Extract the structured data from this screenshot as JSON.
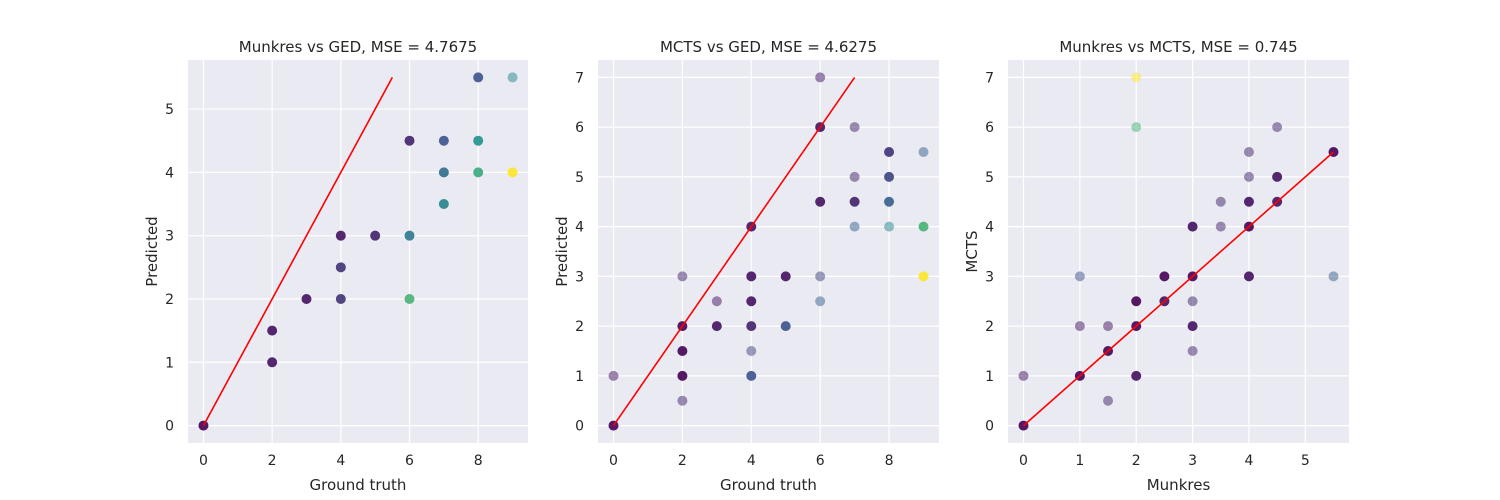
{
  "chart_data": [
    {
      "type": "scatter",
      "title": "Munkres vs GED, MSE = 4.7675",
      "xlabel": "Ground truth",
      "ylabel": "Predicted",
      "xlim": [
        -0.45,
        9.45
      ],
      "ylim": [
        -0.275,
        5.775
      ],
      "xticks": [
        0,
        2,
        4,
        6,
        8
      ],
      "yticks": [
        0,
        1,
        2,
        3,
        4,
        5
      ],
      "grid": true,
      "identity_line": [
        [
          0,
          0
        ],
        [
          5.5,
          5.5
        ]
      ],
      "points": [
        {
          "x": 0,
          "y": 0,
          "c": 0.0,
          "dense": true
        },
        {
          "x": 2,
          "y": 1,
          "c": 0.05,
          "dense": true
        },
        {
          "x": 2,
          "y": 1.5,
          "c": 0.05,
          "dense": true
        },
        {
          "x": 3,
          "y": 2,
          "c": 0.05,
          "dense": true
        },
        {
          "x": 4,
          "y": 2,
          "c": 0.15,
          "dense": true
        },
        {
          "x": 4,
          "y": 2.5,
          "c": 0.15,
          "dense": true
        },
        {
          "x": 4,
          "y": 3,
          "c": 0.05,
          "dense": true
        },
        {
          "x": 5,
          "y": 3,
          "c": 0.1,
          "dense": true
        },
        {
          "x": 6,
          "y": 2,
          "c": 0.65,
          "dense": true
        },
        {
          "x": 6,
          "y": 3,
          "c": 0.4,
          "dense": true
        },
        {
          "x": 6,
          "y": 4.5,
          "c": 0.1,
          "dense": true
        },
        {
          "x": 7,
          "y": 3.5,
          "c": 0.45,
          "dense": true
        },
        {
          "x": 7,
          "y": 4,
          "c": 0.35,
          "dense": true
        },
        {
          "x": 7,
          "y": 4.5,
          "c": 0.25,
          "dense": true
        },
        {
          "x": 8,
          "y": 4,
          "c": 0.6,
          "dense": true
        },
        {
          "x": 8,
          "y": 4.5,
          "c": 0.5,
          "dense": true
        },
        {
          "x": 8,
          "y": 5.5,
          "c": 0.25,
          "dense": true
        },
        {
          "x": 9,
          "y": 4,
          "c": 1.0,
          "dense": true
        },
        {
          "x": 9,
          "y": 5.5,
          "c": 0.45,
          "dense": false
        }
      ]
    },
    {
      "type": "scatter",
      "title": "MCTS vs GED, MSE = 4.6275",
      "xlabel": "Ground truth",
      "ylabel": "Predicted",
      "xlim": [
        -0.45,
        9.45
      ],
      "ylim": [
        -0.35,
        7.35
      ],
      "xticks": [
        0,
        2,
        4,
        6,
        8
      ],
      "yticks": [
        0,
        1,
        2,
        3,
        4,
        5,
        6,
        7
      ],
      "grid": true,
      "identity_line": [
        [
          0,
          0
        ],
        [
          7,
          7
        ]
      ],
      "points": [
        {
          "x": 0,
          "y": 0,
          "c": 0.0,
          "dense": true
        },
        {
          "x": 0,
          "y": 1,
          "c": 0.05,
          "dense": false
        },
        {
          "x": 2,
          "y": 0.5,
          "c": 0.1,
          "dense": false
        },
        {
          "x": 2,
          "y": 1,
          "c": 0.0,
          "dense": true
        },
        {
          "x": 2,
          "y": 1.5,
          "c": 0.0,
          "dense": true
        },
        {
          "x": 2,
          "y": 2,
          "c": 0.0,
          "dense": true
        },
        {
          "x": 2,
          "y": 3,
          "c": 0.1,
          "dense": false
        },
        {
          "x": 3,
          "y": 2,
          "c": 0.05,
          "dense": true
        },
        {
          "x": 3,
          "y": 2.5,
          "c": 0.05,
          "dense": false
        },
        {
          "x": 4,
          "y": 1,
          "c": 0.25,
          "dense": true
        },
        {
          "x": 4,
          "y": 1.5,
          "c": 0.2,
          "dense": false
        },
        {
          "x": 4,
          "y": 2,
          "c": 0.1,
          "dense": true
        },
        {
          "x": 4,
          "y": 2.5,
          "c": 0.05,
          "dense": true
        },
        {
          "x": 4,
          "y": 3,
          "c": 0.05,
          "dense": true
        },
        {
          "x": 4,
          "y": 4,
          "c": 0.05,
          "dense": true
        },
        {
          "x": 5,
          "y": 2,
          "c": 0.25,
          "dense": true
        },
        {
          "x": 5,
          "y": 3,
          "c": 0.05,
          "dense": true
        },
        {
          "x": 6,
          "y": 2.5,
          "c": 0.3,
          "dense": false
        },
        {
          "x": 6,
          "y": 3,
          "c": 0.2,
          "dense": false
        },
        {
          "x": 6,
          "y": 4.5,
          "c": 0.05,
          "dense": true
        },
        {
          "x": 6,
          "y": 6,
          "c": 0.05,
          "dense": true
        },
        {
          "x": 6,
          "y": 7,
          "c": 0.05,
          "dense": false
        },
        {
          "x": 7,
          "y": 4,
          "c": 0.3,
          "dense": false
        },
        {
          "x": 7,
          "y": 4.5,
          "c": 0.1,
          "dense": true
        },
        {
          "x": 7,
          "y": 5,
          "c": 0.1,
          "dense": false
        },
        {
          "x": 7,
          "y": 6,
          "c": 0.1,
          "dense": false
        },
        {
          "x": 8,
          "y": 4,
          "c": 0.45,
          "dense": false
        },
        {
          "x": 8,
          "y": 4.5,
          "c": 0.3,
          "dense": true
        },
        {
          "x": 8,
          "y": 5,
          "c": 0.2,
          "dense": true
        },
        {
          "x": 8,
          "y": 5.5,
          "c": 0.15,
          "dense": true
        },
        {
          "x": 9,
          "y": 3,
          "c": 1.0,
          "dense": true
        },
        {
          "x": 9,
          "y": 4,
          "c": 0.65,
          "dense": true
        },
        {
          "x": 9,
          "y": 5.5,
          "c": 0.3,
          "dense": false
        }
      ]
    },
    {
      "type": "scatter",
      "title": "Munkres vs MCTS, MSE = 0.745",
      "xlabel": "Munkres",
      "ylabel": "MCTS",
      "xlim": [
        -0.275,
        5.775
      ],
      "ylim": [
        -0.35,
        7.35
      ],
      "xticks": [
        0,
        1,
        2,
        3,
        4,
        5
      ],
      "yticks": [
        0,
        1,
        2,
        3,
        4,
        5,
        6,
        7
      ],
      "grid": true,
      "identity_line": [
        [
          0,
          0
        ],
        [
          5.5,
          5.5
        ]
      ],
      "points": [
        {
          "x": 0,
          "y": 0,
          "c": 0.0,
          "dense": true
        },
        {
          "x": 0,
          "y": 1,
          "c": 0.05,
          "dense": false
        },
        {
          "x": 1,
          "y": 1,
          "c": 0.0,
          "dense": true
        },
        {
          "x": 1,
          "y": 2,
          "c": 0.05,
          "dense": false
        },
        {
          "x": 1,
          "y": 3,
          "c": 0.25,
          "dense": false
        },
        {
          "x": 1.5,
          "y": 0.5,
          "c": 0.1,
          "dense": false
        },
        {
          "x": 1.5,
          "y": 1.5,
          "c": 0.0,
          "dense": true
        },
        {
          "x": 1.5,
          "y": 2,
          "c": 0.05,
          "dense": false
        },
        {
          "x": 2,
          "y": 1,
          "c": 0.05,
          "dense": true
        },
        {
          "x": 2,
          "y": 2,
          "c": 0.0,
          "dense": true
        },
        {
          "x": 2,
          "y": 2.5,
          "c": 0.0,
          "dense": true
        },
        {
          "x": 2,
          "y": 6,
          "c": 0.65,
          "dense": false
        },
        {
          "x": 2,
          "y": 7,
          "c": 1.0,
          "dense": false
        },
        {
          "x": 2.5,
          "y": 2.5,
          "c": 0.05,
          "dense": true
        },
        {
          "x": 2.5,
          "y": 3,
          "c": 0.0,
          "dense": true
        },
        {
          "x": 3,
          "y": 1.5,
          "c": 0.1,
          "dense": false
        },
        {
          "x": 3,
          "y": 2,
          "c": 0.05,
          "dense": true
        },
        {
          "x": 3,
          "y": 2.5,
          "c": 0.1,
          "dense": false
        },
        {
          "x": 3,
          "y": 3,
          "c": 0.0,
          "dense": true
        },
        {
          "x": 3,
          "y": 4,
          "c": 0.05,
          "dense": true
        },
        {
          "x": 3.5,
          "y": 4,
          "c": 0.1,
          "dense": false
        },
        {
          "x": 3.5,
          "y": 4.5,
          "c": 0.1,
          "dense": false
        },
        {
          "x": 4,
          "y": 3,
          "c": 0.05,
          "dense": true
        },
        {
          "x": 4,
          "y": 4,
          "c": 0.0,
          "dense": true
        },
        {
          "x": 4,
          "y": 4.5,
          "c": 0.05,
          "dense": true
        },
        {
          "x": 4,
          "y": 5,
          "c": 0.1,
          "dense": false
        },
        {
          "x": 4,
          "y": 5.5,
          "c": 0.1,
          "dense": false
        },
        {
          "x": 4.5,
          "y": 4.5,
          "c": 0.05,
          "dense": true
        },
        {
          "x": 4.5,
          "y": 5,
          "c": 0.05,
          "dense": true
        },
        {
          "x": 4.5,
          "y": 6,
          "c": 0.1,
          "dense": false
        },
        {
          "x": 5.5,
          "y": 3,
          "c": 0.3,
          "dense": false
        },
        {
          "x": 5.5,
          "y": 5.5,
          "c": 0.0,
          "dense": true
        }
      ]
    }
  ]
}
